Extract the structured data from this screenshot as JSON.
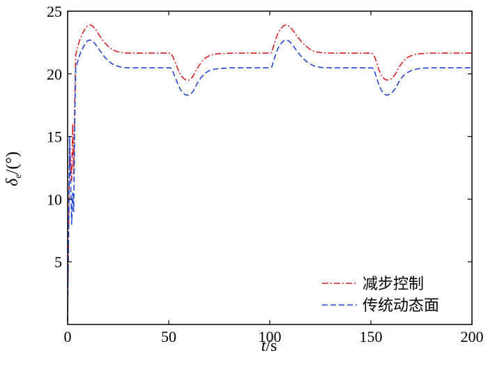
{
  "chart_data": {
    "type": "line",
    "title": "",
    "xlabel_italic": "t",
    "xlabel_unit": "/s",
    "ylabel_symbol": "δ",
    "ylabel_sub": "e",
    "ylabel_unit": "/(°)",
    "xlim": [
      0,
      200
    ],
    "ylim": [
      0,
      25
    ],
    "xticks": [
      0,
      50,
      100,
      150,
      200
    ],
    "yticks": [
      5,
      10,
      15,
      20,
      25
    ],
    "grid": false,
    "legend_position": "bottom-right",
    "series": [
      {
        "name": "减步控制",
        "color": "#d42020",
        "dash": "dash-dot",
        "x": [
          0,
          1,
          2,
          2.5,
          3,
          3.5,
          4,
          5,
          6,
          7,
          8,
          9,
          10,
          11,
          12,
          13,
          14,
          16,
          18,
          20,
          22,
          24,
          26,
          28,
          30,
          40,
          50,
          51,
          52,
          53,
          54,
          55,
          56,
          57,
          58,
          59,
          60,
          61,
          62,
          63,
          64,
          66,
          68,
          70,
          72,
          74,
          76,
          78,
          80,
          90,
          100,
          101,
          102,
          103,
          104,
          105,
          106,
          107,
          108,
          109,
          110,
          111,
          112,
          113,
          114,
          116,
          118,
          120,
          122,
          124,
          126,
          128,
          130,
          140,
          150,
          151,
          152,
          153,
          154,
          155,
          156,
          157,
          158,
          159,
          160,
          161,
          162,
          163,
          164,
          166,
          168,
          170,
          172,
          174,
          176,
          178,
          180,
          190,
          200
        ],
        "y": [
          0.3,
          14.0,
          11.5,
          16.0,
          12.0,
          17.5,
          21.5,
          22.2,
          22.7,
          23.1,
          23.4,
          23.7,
          23.85,
          23.9,
          23.85,
          23.7,
          23.5,
          23.0,
          22.55,
          22.2,
          21.95,
          21.8,
          21.72,
          21.68,
          21.65,
          21.65,
          21.65,
          21.65,
          21.4,
          21.0,
          20.6,
          20.2,
          19.9,
          19.7,
          19.55,
          19.5,
          19.5,
          19.6,
          19.8,
          20.1,
          20.4,
          20.9,
          21.25,
          21.45,
          21.55,
          21.6,
          21.62,
          21.63,
          21.65,
          21.65,
          21.65,
          21.7,
          22.3,
          22.8,
          23.2,
          23.5,
          23.7,
          23.85,
          23.9,
          23.85,
          23.75,
          23.55,
          23.35,
          23.1,
          22.9,
          22.5,
          22.2,
          21.95,
          21.8,
          21.72,
          21.68,
          21.66,
          21.65,
          21.65,
          21.65,
          21.6,
          21.3,
          20.8,
          20.3,
          19.95,
          19.7,
          19.55,
          19.5,
          19.55,
          19.6,
          19.75,
          19.95,
          20.25,
          20.55,
          21.0,
          21.3,
          21.45,
          21.55,
          21.6,
          21.62,
          21.64,
          21.65,
          21.65,
          21.65
        ]
      },
      {
        "name": "传统动态面",
        "color": "#2046d4",
        "dash": "dash",
        "x": [
          0,
          1,
          2,
          2.5,
          3,
          3.5,
          4,
          5,
          6,
          7,
          8,
          9,
          10,
          11,
          12,
          13,
          14,
          16,
          18,
          20,
          22,
          24,
          26,
          28,
          30,
          40,
          50,
          51,
          52,
          53,
          54,
          55,
          56,
          57,
          58,
          59,
          60,
          61,
          62,
          63,
          64,
          66,
          68,
          70,
          72,
          74,
          76,
          78,
          80,
          90,
          100,
          101,
          102,
          103,
          104,
          105,
          106,
          107,
          108,
          109,
          110,
          111,
          112,
          113,
          114,
          116,
          118,
          120,
          122,
          124,
          126,
          128,
          130,
          140,
          150,
          151,
          152,
          153,
          154,
          155,
          156,
          157,
          158,
          159,
          160,
          161,
          162,
          163,
          164,
          166,
          168,
          170,
          172,
          174,
          176,
          178,
          180,
          190,
          200
        ],
        "y": [
          0.3,
          15.0,
          8.0,
          10.5,
          9.0,
          16.0,
          20.4,
          21.0,
          21.5,
          21.9,
          22.2,
          22.5,
          22.65,
          22.7,
          22.65,
          22.5,
          22.3,
          21.85,
          21.4,
          21.05,
          20.8,
          20.65,
          20.55,
          20.5,
          20.48,
          20.48,
          20.48,
          20.48,
          20.2,
          19.8,
          19.4,
          19.0,
          18.7,
          18.5,
          18.35,
          18.3,
          18.3,
          18.4,
          18.6,
          18.9,
          19.2,
          19.7,
          20.05,
          20.25,
          20.35,
          20.4,
          20.43,
          20.45,
          20.48,
          20.48,
          20.48,
          20.55,
          21.1,
          21.6,
          22.0,
          22.3,
          22.5,
          22.65,
          22.7,
          22.65,
          22.55,
          22.35,
          22.15,
          21.9,
          21.7,
          21.3,
          21.0,
          20.78,
          20.62,
          20.55,
          20.5,
          20.49,
          20.48,
          20.48,
          20.48,
          20.45,
          20.1,
          19.6,
          19.1,
          18.75,
          18.5,
          18.35,
          18.3,
          18.35,
          18.45,
          18.6,
          18.8,
          19.1,
          19.4,
          19.85,
          20.1,
          20.25,
          20.35,
          20.42,
          20.45,
          20.47,
          20.48,
          20.48,
          20.48
        ]
      }
    ]
  }
}
